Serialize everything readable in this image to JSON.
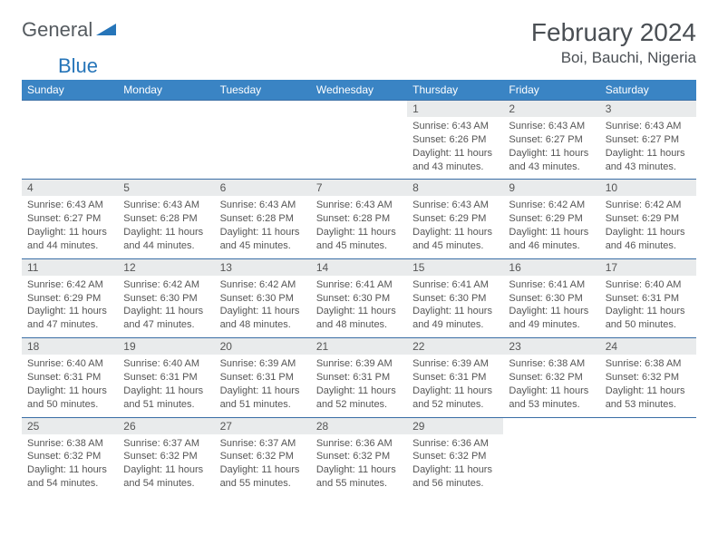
{
  "brand": {
    "word1": "General",
    "word2": "Blue"
  },
  "title": "February 2024",
  "location": "Boi, Bauchi, Nigeria",
  "colors": {
    "header_bg": "#3a84c4",
    "header_text": "#ffffff",
    "daynum_bg": "#e9ebec",
    "row_divider": "#3a6ea5",
    "brand_gray": "#555b60",
    "brand_blue": "#2675b9",
    "body_text": "#555555",
    "page_bg": "#ffffff"
  },
  "days": [
    "Sunday",
    "Monday",
    "Tuesday",
    "Wednesday",
    "Thursday",
    "Friday",
    "Saturday"
  ],
  "weeks": [
    [
      null,
      null,
      null,
      null,
      {
        "n": "1",
        "sunrise": "6:43 AM",
        "sunset": "6:26 PM",
        "daylight": "11 hours and 43 minutes."
      },
      {
        "n": "2",
        "sunrise": "6:43 AM",
        "sunset": "6:27 PM",
        "daylight": "11 hours and 43 minutes."
      },
      {
        "n": "3",
        "sunrise": "6:43 AM",
        "sunset": "6:27 PM",
        "daylight": "11 hours and 43 minutes."
      }
    ],
    [
      {
        "n": "4",
        "sunrise": "6:43 AM",
        "sunset": "6:27 PM",
        "daylight": "11 hours and 44 minutes."
      },
      {
        "n": "5",
        "sunrise": "6:43 AM",
        "sunset": "6:28 PM",
        "daylight": "11 hours and 44 minutes."
      },
      {
        "n": "6",
        "sunrise": "6:43 AM",
        "sunset": "6:28 PM",
        "daylight": "11 hours and 45 minutes."
      },
      {
        "n": "7",
        "sunrise": "6:43 AM",
        "sunset": "6:28 PM",
        "daylight": "11 hours and 45 minutes."
      },
      {
        "n": "8",
        "sunrise": "6:43 AM",
        "sunset": "6:29 PM",
        "daylight": "11 hours and 45 minutes."
      },
      {
        "n": "9",
        "sunrise": "6:42 AM",
        "sunset": "6:29 PM",
        "daylight": "11 hours and 46 minutes."
      },
      {
        "n": "10",
        "sunrise": "6:42 AM",
        "sunset": "6:29 PM",
        "daylight": "11 hours and 46 minutes."
      }
    ],
    [
      {
        "n": "11",
        "sunrise": "6:42 AM",
        "sunset": "6:29 PM",
        "daylight": "11 hours and 47 minutes."
      },
      {
        "n": "12",
        "sunrise": "6:42 AM",
        "sunset": "6:30 PM",
        "daylight": "11 hours and 47 minutes."
      },
      {
        "n": "13",
        "sunrise": "6:42 AM",
        "sunset": "6:30 PM",
        "daylight": "11 hours and 48 minutes."
      },
      {
        "n": "14",
        "sunrise": "6:41 AM",
        "sunset": "6:30 PM",
        "daylight": "11 hours and 48 minutes."
      },
      {
        "n": "15",
        "sunrise": "6:41 AM",
        "sunset": "6:30 PM",
        "daylight": "11 hours and 49 minutes."
      },
      {
        "n": "16",
        "sunrise": "6:41 AM",
        "sunset": "6:30 PM",
        "daylight": "11 hours and 49 minutes."
      },
      {
        "n": "17",
        "sunrise": "6:40 AM",
        "sunset": "6:31 PM",
        "daylight": "11 hours and 50 minutes."
      }
    ],
    [
      {
        "n": "18",
        "sunrise": "6:40 AM",
        "sunset": "6:31 PM",
        "daylight": "11 hours and 50 minutes."
      },
      {
        "n": "19",
        "sunrise": "6:40 AM",
        "sunset": "6:31 PM",
        "daylight": "11 hours and 51 minutes."
      },
      {
        "n": "20",
        "sunrise": "6:39 AM",
        "sunset": "6:31 PM",
        "daylight": "11 hours and 51 minutes."
      },
      {
        "n": "21",
        "sunrise": "6:39 AM",
        "sunset": "6:31 PM",
        "daylight": "11 hours and 52 minutes."
      },
      {
        "n": "22",
        "sunrise": "6:39 AM",
        "sunset": "6:31 PM",
        "daylight": "11 hours and 52 minutes."
      },
      {
        "n": "23",
        "sunrise": "6:38 AM",
        "sunset": "6:32 PM",
        "daylight": "11 hours and 53 minutes."
      },
      {
        "n": "24",
        "sunrise": "6:38 AM",
        "sunset": "6:32 PM",
        "daylight": "11 hours and 53 minutes."
      }
    ],
    [
      {
        "n": "25",
        "sunrise": "6:38 AM",
        "sunset": "6:32 PM",
        "daylight": "11 hours and 54 minutes."
      },
      {
        "n": "26",
        "sunrise": "6:37 AM",
        "sunset": "6:32 PM",
        "daylight": "11 hours and 54 minutes."
      },
      {
        "n": "27",
        "sunrise": "6:37 AM",
        "sunset": "6:32 PM",
        "daylight": "11 hours and 55 minutes."
      },
      {
        "n": "28",
        "sunrise": "6:36 AM",
        "sunset": "6:32 PM",
        "daylight": "11 hours and 55 minutes."
      },
      {
        "n": "29",
        "sunrise": "6:36 AM",
        "sunset": "6:32 PM",
        "daylight": "11 hours and 56 minutes."
      },
      null,
      null
    ]
  ],
  "labels": {
    "sunrise": "Sunrise:",
    "sunset": "Sunset:",
    "daylight": "Daylight:"
  }
}
